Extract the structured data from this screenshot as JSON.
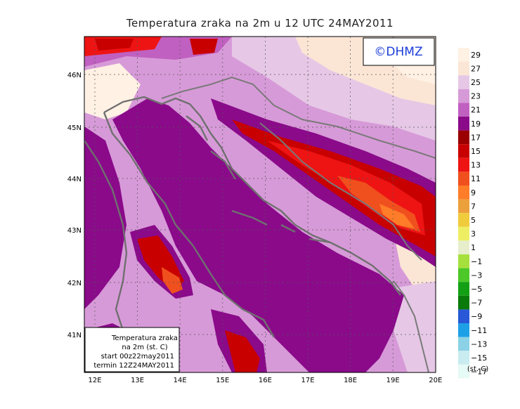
{
  "title": "Temperatura zraka na 2m u 12 UTC 24MAY2011",
  "logo": "©DHMZ",
  "info_box": {
    "line1": "Temperatura zraka",
    "line2": "na 2m (st. C)",
    "line3": "start 00z22may2011",
    "line4": "termin 12Z24MAY2011"
  },
  "lat_labels": [
    "46N",
    "45N",
    "44N",
    "43N",
    "42N",
    "41N"
  ],
  "lon_labels": [
    "12E",
    "13E",
    "14E",
    "15E",
    "16E",
    "17E",
    "18E",
    "19E",
    "20E"
  ],
  "legend": {
    "unit": "(st. C)",
    "labels": [
      "29",
      "27",
      "25",
      "23",
      "21",
      "19",
      "17",
      "15",
      "13",
      "11",
      "9",
      "7",
      "5",
      "3",
      "1",
      "−1",
      "−3",
      "−5",
      "−7",
      "−9",
      "−11",
      "−13",
      "−15",
      "−17"
    ],
    "colors": [
      "#fff1e4",
      "#fbe6d6",
      "#e6c8e6",
      "#d79ad8",
      "#c060c0",
      "#8a0a8a",
      "#9a0000",
      "#c80000",
      "#ee1414",
      "#f0501e",
      "#ff7c28",
      "#eca03c",
      "#f0cc3c",
      "#eeee64",
      "#e6eecc",
      "#a6e03c",
      "#4cc828",
      "#14a014",
      "#0a7a0a",
      "#2858d8",
      "#1ea0e6",
      "#8cd2e6",
      "#c8ecf0",
      "#e6faf6"
    ]
  },
  "colors": {
    "sea": "#8a0a8a",
    "coast": "#707070",
    "border": "#7a7a7a"
  }
}
